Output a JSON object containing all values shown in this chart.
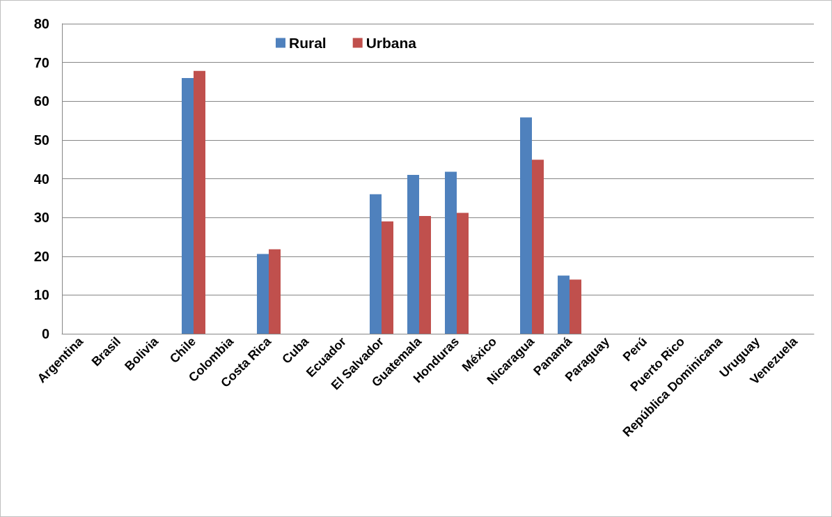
{
  "chart_data": {
    "type": "bar",
    "categories": [
      "Argentina",
      "Brasil",
      "Bolivia",
      "Chile",
      "Colombia",
      "Costa Rica",
      "Cuba",
      "Ecuador",
      "El Salvador",
      "Guatemala",
      "Honduras",
      "México",
      "Nicaragua",
      "Panamá",
      "Paraguay",
      "Perú",
      "Puerto Rico",
      "República Dominicana",
      "Uruguay",
      "Venezuela"
    ],
    "series": [
      {
        "name": "Rural",
        "color": "#4f81bd",
        "values": [
          null,
          null,
          null,
          66,
          null,
          20.6,
          null,
          null,
          36,
          41,
          41.8,
          null,
          55.8,
          15,
          null,
          null,
          null,
          null,
          null,
          null
        ]
      },
      {
        "name": "Urbana",
        "color": "#c0504d",
        "values": [
          null,
          null,
          null,
          67.8,
          null,
          21.8,
          null,
          null,
          29,
          30.4,
          31.2,
          null,
          44.9,
          14,
          null,
          null,
          null,
          null,
          null,
          null
        ]
      }
    ],
    "ylim": [
      0,
      80
    ],
    "yticks": [
      0,
      10,
      20,
      30,
      40,
      50,
      60,
      70,
      80
    ],
    "grid": "y",
    "legend": "top"
  }
}
